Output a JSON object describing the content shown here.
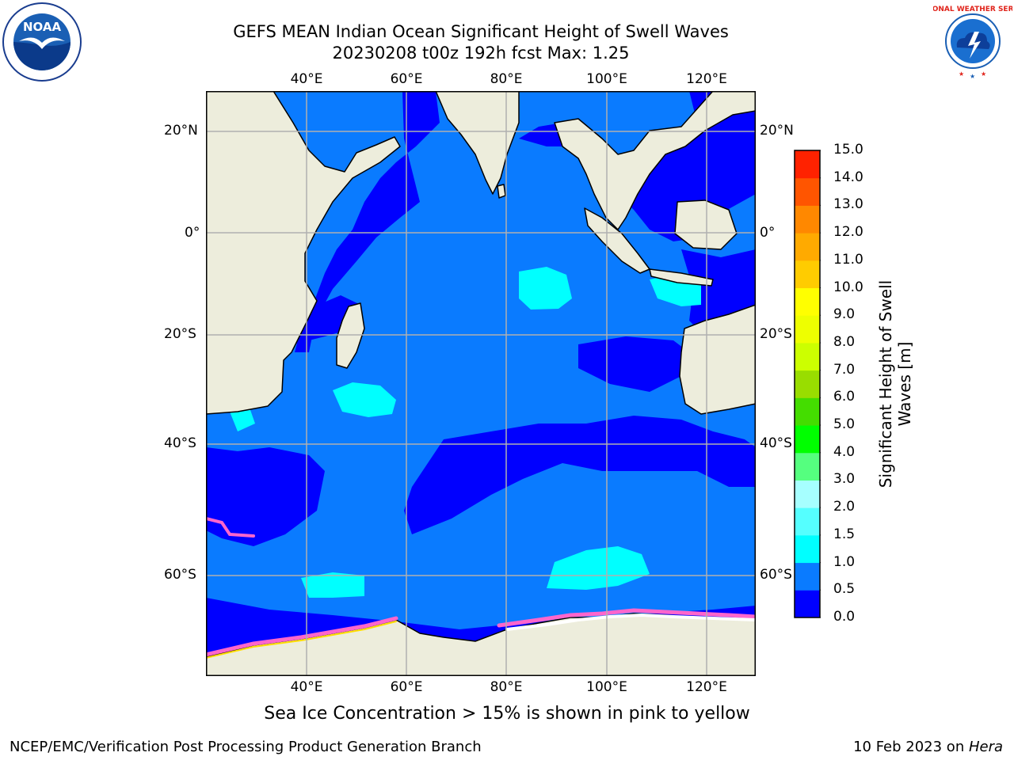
{
  "title": {
    "line1": "GEFS MEAN Indian Ocean Significant Height of Swell Waves",
    "line2": "20230208 t00z 192h fcst   Max: 1.25"
  },
  "map": {
    "lon_labels": [
      "40°E",
      "60°E",
      "80°E",
      "100°E",
      "120°E"
    ],
    "lat_labels_left": [
      "20°N",
      "0°",
      "20°S",
      "40°S",
      "60°S"
    ],
    "lat_labels_right": [
      "20°N",
      "0°",
      "20°S",
      "40°S",
      "60°S"
    ],
    "colors": {
      "land": "#ededdc",
      "band_0_0p5": "#0000ff",
      "band_0p5_1": "#0a7bff",
      "band_1_1p5": "#00ffff",
      "ice": "#ff66cc"
    }
  },
  "colorbar": {
    "label": "Significant Height of Swell Waves [m]",
    "ticks": [
      "15.0",
      "14.0",
      "13.0",
      "12.0",
      "11.0",
      "10.0",
      "9.0",
      "8.0",
      "7.0",
      "6.0",
      "5.0",
      "4.0",
      "3.0",
      "2.0",
      "1.5",
      "1.0",
      "0.5",
      "0.0"
    ],
    "colors": [
      "#0000ff",
      "#0a7bff",
      "#00ffff",
      "#55ffff",
      "#a6ffff",
      "#55ff7f",
      "#00ff00",
      "#44dd00",
      "#99dd00",
      "#ccff00",
      "#eeff00",
      "#ffff00",
      "#ffcc00",
      "#ffaa00",
      "#ff8800",
      "#ff5500",
      "#ff2200"
    ]
  },
  "caption": "Sea Ice Concentration > 15% is shown in pink to yellow",
  "footer": {
    "left": "NCEP/EMC/Verification Post Processing Product Generation Branch",
    "right_date": "10 Feb 2023 on ",
    "right_host": "Hera"
  },
  "logos": {
    "noaa": "NOAA",
    "nws": "NATIONAL WEATHER SERVICE"
  }
}
